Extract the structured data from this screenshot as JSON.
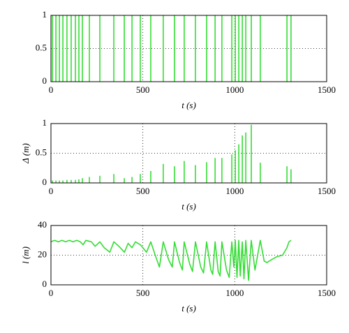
{
  "chart_data": [
    {
      "type": "impulse",
      "color": "#33dd33",
      "grid": true,
      "x": [
        8,
        27,
        46,
        65,
        87,
        110,
        133,
        152,
        171,
        209,
        266,
        342,
        399,
        441,
        486,
        543,
        611,
        672,
        725,
        786,
        847,
        893,
        930,
        984,
        1003,
        1022,
        1041,
        1060,
        1090,
        1139,
        1284,
        1306
      ],
      "values": [
        1,
        1,
        1,
        1,
        1,
        1,
        1,
        1,
        1,
        1,
        1,
        1,
        1,
        1,
        1,
        1,
        1,
        1,
        1,
        1,
        1,
        1,
        1,
        1,
        1,
        1,
        1,
        1,
        1,
        1,
        1,
        1
      ],
      "xlabel": "t (s)",
      "xlim": [
        0,
        1500
      ],
      "xticks": [
        0,
        500,
        1000,
        1500
      ],
      "ylim": [
        0,
        1
      ],
      "yticks": [
        0,
        0.5,
        1
      ]
    },
    {
      "type": "impulse",
      "color": "#33dd33",
      "grid": true,
      "x": [
        8,
        27,
        46,
        65,
        87,
        110,
        133,
        152,
        171,
        209,
        266,
        342,
        399,
        441,
        486,
        543,
        611,
        672,
        725,
        786,
        847,
        893,
        930,
        984,
        1003,
        1022,
        1041,
        1060,
        1090,
        1139,
        1284,
        1306
      ],
      "values": [
        0.04,
        0.04,
        0.04,
        0.04,
        0.05,
        0.05,
        0.05,
        0.06,
        0.08,
        0.1,
        0.12,
        0.15,
        0.08,
        0.1,
        0.15,
        0.2,
        0.32,
        0.28,
        0.37,
        0.3,
        0.35,
        0.42,
        0.42,
        0.48,
        0.55,
        0.65,
        0.8,
        0.85,
        0.98,
        0.34,
        0.28,
        0.23
      ],
      "xlabel": "t (s)",
      "ylabel": "Δ (m)",
      "xlim": [
        0,
        1500
      ],
      "xticks": [
        0,
        500,
        1000,
        1500
      ],
      "ylim": [
        0,
        1
      ],
      "yticks": [
        0,
        0.5,
        1
      ]
    },
    {
      "type": "line",
      "color": "#33dd33",
      "grid": true,
      "x": [
        0,
        20,
        40,
        60,
        80,
        100,
        120,
        140,
        160,
        175,
        190,
        220,
        240,
        266,
        290,
        320,
        342,
        370,
        400,
        420,
        441,
        460,
        486,
        500,
        520,
        543,
        570,
        590,
        611,
        640,
        660,
        672,
        700,
        715,
        725,
        755,
        770,
        786,
        815,
        830,
        847,
        870,
        880,
        893,
        910,
        920,
        930,
        955,
        970,
        984,
        995,
        1003,
        1012,
        1022,
        1030,
        1041,
        1050,
        1060,
        1075,
        1090,
        1110,
        1139,
        1160,
        1175,
        1200,
        1230,
        1260,
        1284,
        1295,
        1306
      ],
      "values": [
        29,
        30,
        29,
        30,
        29,
        30,
        29,
        30,
        29,
        27,
        30,
        29,
        26,
        29,
        25,
        22,
        29,
        26,
        22,
        28,
        25,
        29,
        27,
        25,
        22,
        29,
        19,
        12,
        29,
        17,
        12,
        29,
        15,
        10,
        29,
        14,
        9,
        29,
        12,
        8,
        29,
        10,
        7,
        29,
        9,
        6,
        29,
        10,
        5,
        29,
        12,
        30,
        5,
        30,
        6,
        29,
        4,
        30,
        3,
        30,
        10,
        30,
        16,
        15,
        17,
        19,
        20,
        25,
        29,
        30
      ],
      "xlabel": "t (s)",
      "ylabel": "l (m)",
      "xlim": [
        0,
        1500
      ],
      "xticks": [
        0,
        500,
        1000,
        1500
      ],
      "ylim": [
        0,
        40
      ],
      "yticks": [
        0,
        20,
        40
      ]
    }
  ]
}
